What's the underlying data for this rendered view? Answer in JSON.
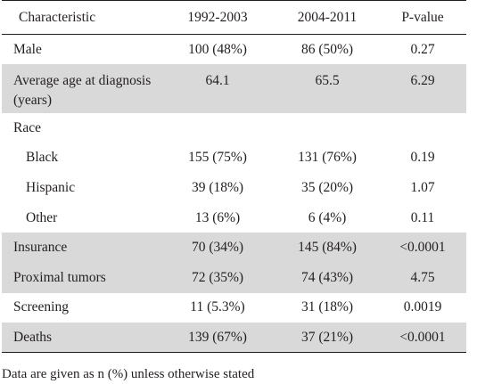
{
  "table": {
    "headers": [
      "Characteristic",
      "1992-2003",
      "2004-2011",
      "P-value"
    ],
    "rows": [
      {
        "label": "Male",
        "c1": "100 (48%)",
        "c2": "86 (50%)",
        "p": "0.27"
      },
      {
        "label": "Average age at diagnosis (years)",
        "c1": "64.1",
        "c2": "65.5",
        "p": "6.29"
      },
      {
        "label": "Race",
        "c1": "",
        "c2": "",
        "p": ""
      },
      {
        "label": "Black",
        "c1": "155 (75%)",
        "c2": "131 (76%)",
        "p": "0.19"
      },
      {
        "label": "Hispanic",
        "c1": "39 (18%)",
        "c2": "35 (20%)",
        "p": "1.07"
      },
      {
        "label": "Other",
        "c1": "13 (6%)",
        "c2": "6 (4%)",
        "p": "0.11"
      },
      {
        "label": "Insurance",
        "c1": "70 (34%)",
        "c2": "145 (84%)",
        "p": "<0.0001"
      },
      {
        "label": "Proximal tumors",
        "c1": "72 (35%)",
        "c2": "74 (43%)",
        "p": "4.75"
      },
      {
        "label": "Screening",
        "c1": "11 (5.3%)",
        "c2": "31 (18%)",
        "p": "0.0019"
      },
      {
        "label": "Deaths",
        "c1": "139 (67%)",
        "c2": "37 (21%)",
        "p": "<0.0001"
      }
    ],
    "footnote": "Data are given as n (%) unless otherwise stated"
  }
}
